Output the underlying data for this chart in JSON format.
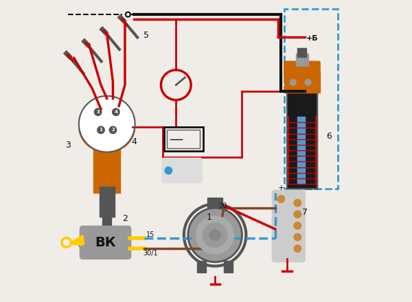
{
  "bg_color": "#f0ede8",
  "title": "",
  "colors": {
    "red": "#cc0000",
    "black": "#111111",
    "orange": "#cc6600",
    "blue_dashed": "#3399cc",
    "brown": "#884422",
    "yellow": "#ffcc00",
    "gray": "#999999",
    "dark_gray": "#555555",
    "coil_body": "#1a1a1a",
    "coil_top": "#cc6600",
    "bg": "#f0ede8"
  }
}
